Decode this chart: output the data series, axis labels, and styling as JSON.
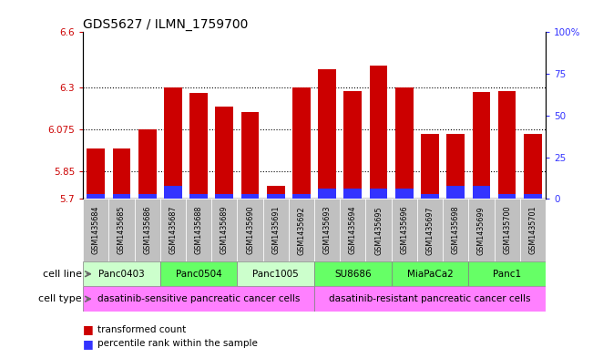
{
  "title": "GDS5627 / ILMN_1759700",
  "samples": [
    "GSM1435684",
    "GSM1435685",
    "GSM1435686",
    "GSM1435687",
    "GSM1435688",
    "GSM1435689",
    "GSM1435690",
    "GSM1435691",
    "GSM1435692",
    "GSM1435693",
    "GSM1435694",
    "GSM1435695",
    "GSM1435696",
    "GSM1435697",
    "GSM1435698",
    "GSM1435699",
    "GSM1435700",
    "GSM1435701"
  ],
  "red_values": [
    5.97,
    5.97,
    6.075,
    6.3,
    6.27,
    6.2,
    6.17,
    5.77,
    6.3,
    6.4,
    6.28,
    6.42,
    6.3,
    6.05,
    6.05,
    6.275,
    6.28,
    6.05
  ],
  "blue_values": [
    3,
    3,
    3,
    8,
    3,
    3,
    3,
    3,
    3,
    6,
    6,
    6,
    6,
    3,
    8,
    8,
    3,
    3
  ],
  "ymin": 5.7,
  "ymax": 6.6,
  "yticks": [
    5.7,
    5.85,
    6.075,
    6.3,
    6.6
  ],
  "ytick_labels": [
    "5.7",
    "5.85",
    "6.075",
    "6.3",
    "6.6"
  ],
  "right_yticks": [
    0,
    25,
    50,
    75,
    100
  ],
  "right_ytick_labels": [
    "0",
    "25",
    "50",
    "75",
    "100%"
  ],
  "cell_lines": [
    {
      "label": "Panc0403",
      "start": 0,
      "end": 2,
      "color": "#CCFFCC"
    },
    {
      "label": "Panc0504",
      "start": 3,
      "end": 5,
      "color": "#66FF66"
    },
    {
      "label": "Panc1005",
      "start": 6,
      "end": 8,
      "color": "#CCFFCC"
    },
    {
      "label": "SU8686",
      "start": 9,
      "end": 11,
      "color": "#66FF66"
    },
    {
      "label": "MiaPaCa2",
      "start": 12,
      "end": 14,
      "color": "#66FF66"
    },
    {
      "label": "Panc1",
      "start": 15,
      "end": 17,
      "color": "#66FF66"
    }
  ],
  "cell_types": [
    {
      "label": "dasatinib-sensitive pancreatic cancer cells",
      "start": 0,
      "end": 8
    },
    {
      "label": "dasatinib-resistant pancreatic cancer cells",
      "start": 9,
      "end": 17
    }
  ],
  "cell_type_color": "#FF80FF",
  "bar_color": "#CC0000",
  "blue_bar_color": "#3333FF",
  "bg_color": "#FFFFFF",
  "tick_color_left": "#CC0000",
  "tick_color_right": "#3333FF",
  "bar_width": 0.7,
  "sample_bg_color": "#C0C0C0"
}
